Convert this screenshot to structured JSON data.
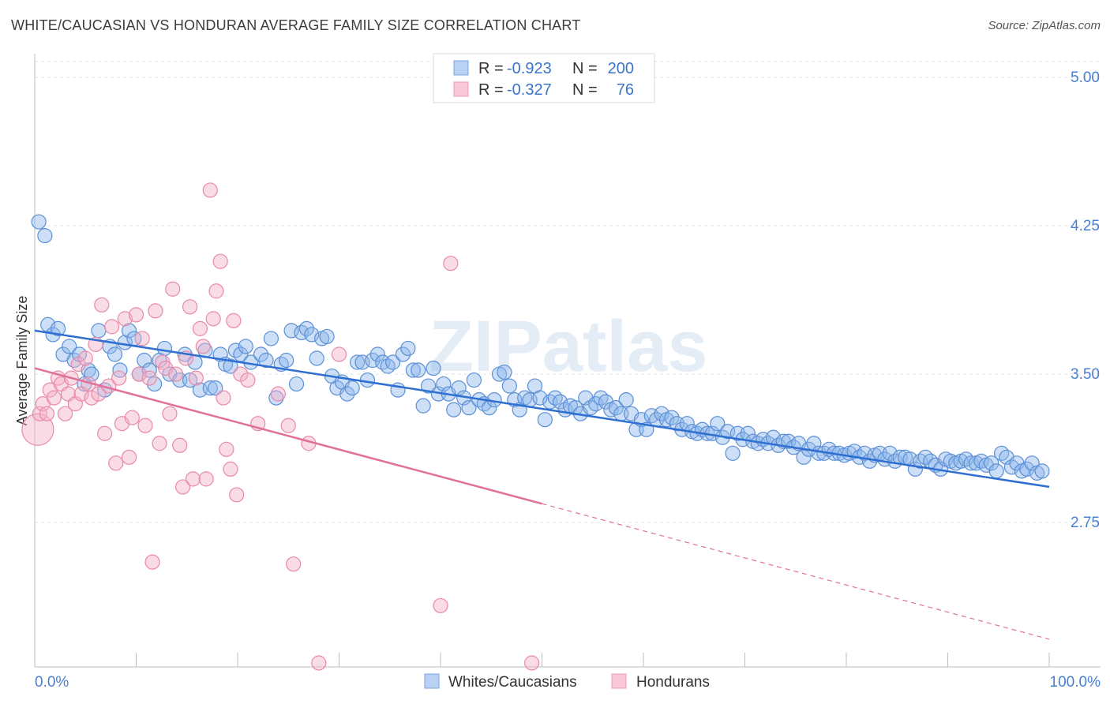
{
  "title": "WHITE/CAUCASIAN VS HONDURAN AVERAGE FAMILY SIZE CORRELATION CHART",
  "source": "Source: ZipAtlas.com",
  "watermark": "ZIPatlas",
  "chart_data": {
    "type": "scatter",
    "xlabel": "",
    "ylabel": "Average Family Size",
    "xlim": [
      0,
      100
    ],
    "ylim": [
      2.02,
      5.12
    ],
    "y_ticks": [
      "5.00",
      "4.25",
      "3.50",
      "2.75"
    ],
    "y_tick_values": [
      5.0,
      4.25,
      3.5,
      2.75
    ],
    "x_tick_labels": [
      "0.0%",
      "100.0%"
    ],
    "grid": true,
    "legend": [
      {
        "r_label": "R =",
        "r_value": "-0.923",
        "n_label": "N =",
        "n_value": "200"
      },
      {
        "r_label": "R =",
        "r_value": "-0.327",
        "n_label": "N =",
        "n_value": "76"
      }
    ],
    "series": [
      {
        "name": "Whites/Caucasians",
        "color": "#8fb8ea",
        "stroke": "#5b8fd6",
        "line_color": "#2e6fd1",
        "trend": {
          "x0": 0,
          "y0": 3.72,
          "x1": 100,
          "y1": 2.93,
          "solid_to": 100
        },
        "points": [
          [
            0.4,
            4.27
          ],
          [
            1,
            4.2
          ],
          [
            1.3,
            3.75
          ],
          [
            1.8,
            3.7
          ],
          [
            2.3,
            3.73
          ],
          [
            2.8,
            3.6
          ],
          [
            3.4,
            3.64
          ],
          [
            3.9,
            3.57
          ],
          [
            4.4,
            3.6
          ],
          [
            4.9,
            3.45
          ],
          [
            5.3,
            3.52
          ],
          [
            5.6,
            3.5
          ],
          [
            6.3,
            3.72
          ],
          [
            6.9,
            3.42
          ],
          [
            7.4,
            3.64
          ],
          [
            7.9,
            3.6
          ],
          [
            8.4,
            3.52
          ],
          [
            8.9,
            3.66
          ],
          [
            9.3,
            3.72
          ],
          [
            9.8,
            3.68
          ],
          [
            10.3,
            3.5
          ],
          [
            10.8,
            3.57
          ],
          [
            11.3,
            3.52
          ],
          [
            11.8,
            3.45
          ],
          [
            12.3,
            3.57
          ],
          [
            12.8,
            3.63
          ],
          [
            13.3,
            3.5
          ],
          [
            14.3,
            3.47
          ],
          [
            14.8,
            3.6
          ],
          [
            15.3,
            3.47
          ],
          [
            15.8,
            3.56
          ],
          [
            16.3,
            3.42
          ],
          [
            16.8,
            3.62
          ],
          [
            17.3,
            3.43
          ],
          [
            17.8,
            3.43
          ],
          [
            18.3,
            3.6
          ],
          [
            18.8,
            3.55
          ],
          [
            19.3,
            3.54
          ],
          [
            19.8,
            3.62
          ],
          [
            20.3,
            3.6
          ],
          [
            20.8,
            3.64
          ],
          [
            21.3,
            3.56
          ],
          [
            22.3,
            3.6
          ],
          [
            22.8,
            3.57
          ],
          [
            23.3,
            3.68
          ],
          [
            23.8,
            3.38
          ],
          [
            24.3,
            3.55
          ],
          [
            24.8,
            3.57
          ],
          [
            25.3,
            3.72
          ],
          [
            25.8,
            3.45
          ],
          [
            26.3,
            3.71
          ],
          [
            26.8,
            3.73
          ],
          [
            27.3,
            3.7
          ],
          [
            27.8,
            3.58
          ],
          [
            28.3,
            3.68
          ],
          [
            28.8,
            3.69
          ],
          [
            29.3,
            3.49
          ],
          [
            29.8,
            3.43
          ],
          [
            30.3,
            3.46
          ],
          [
            30.8,
            3.4
          ],
          [
            31.3,
            3.43
          ],
          [
            31.8,
            3.56
          ],
          [
            32.3,
            3.56
          ],
          [
            32.8,
            3.47
          ],
          [
            33.3,
            3.57
          ],
          [
            33.8,
            3.6
          ],
          [
            34.3,
            3.56
          ],
          [
            34.8,
            3.54
          ],
          [
            35.3,
            3.56
          ],
          [
            35.8,
            3.42
          ],
          [
            36.3,
            3.6
          ],
          [
            36.8,
            3.63
          ],
          [
            37.3,
            3.52
          ],
          [
            37.8,
            3.52
          ],
          [
            38.3,
            3.34
          ],
          [
            38.8,
            3.44
          ],
          [
            39.3,
            3.53
          ],
          [
            39.8,
            3.4
          ],
          [
            40.3,
            3.45
          ],
          [
            40.8,
            3.4
          ],
          [
            41.3,
            3.32
          ],
          [
            41.8,
            3.43
          ],
          [
            42.3,
            3.38
          ],
          [
            42.8,
            3.33
          ],
          [
            43.3,
            3.47
          ],
          [
            43.8,
            3.37
          ],
          [
            44.3,
            3.35
          ],
          [
            44.8,
            3.33
          ],
          [
            45.3,
            3.37
          ],
          [
            45.8,
            3.5
          ],
          [
            46.3,
            3.51
          ],
          [
            46.8,
            3.44
          ],
          [
            47.3,
            3.37
          ],
          [
            47.8,
            3.32
          ],
          [
            48.3,
            3.38
          ],
          [
            48.8,
            3.37
          ],
          [
            49.3,
            3.44
          ],
          [
            49.8,
            3.38
          ],
          [
            50.3,
            3.27
          ],
          [
            50.8,
            3.36
          ],
          [
            51.3,
            3.38
          ],
          [
            51.8,
            3.36
          ],
          [
            52.3,
            3.32
          ],
          [
            52.8,
            3.34
          ],
          [
            53.3,
            3.33
          ],
          [
            53.8,
            3.3
          ],
          [
            54.3,
            3.38
          ],
          [
            54.8,
            3.33
          ],
          [
            55.3,
            3.35
          ],
          [
            55.8,
            3.38
          ],
          [
            56.3,
            3.36
          ],
          [
            56.8,
            3.32
          ],
          [
            57.3,
            3.33
          ],
          [
            57.8,
            3.3
          ],
          [
            58.3,
            3.37
          ],
          [
            58.8,
            3.3
          ],
          [
            59.3,
            3.22
          ],
          [
            59.8,
            3.27
          ],
          [
            60.3,
            3.22
          ],
          [
            60.8,
            3.29
          ],
          [
            61.3,
            3.27
          ],
          [
            61.8,
            3.3
          ],
          [
            62.3,
            3.27
          ],
          [
            62.8,
            3.28
          ],
          [
            63.3,
            3.25
          ],
          [
            63.8,
            3.22
          ],
          [
            64.3,
            3.25
          ],
          [
            64.8,
            3.21
          ],
          [
            65.3,
            3.2
          ],
          [
            65.8,
            3.22
          ],
          [
            66.3,
            3.2
          ],
          [
            66.8,
            3.2
          ],
          [
            67.3,
            3.25
          ],
          [
            67.8,
            3.18
          ],
          [
            68.3,
            3.21
          ],
          [
            68.8,
            3.1
          ],
          [
            69.3,
            3.2
          ],
          [
            69.8,
            3.17
          ],
          [
            70.3,
            3.2
          ],
          [
            70.8,
            3.16
          ],
          [
            71.3,
            3.15
          ],
          [
            71.8,
            3.17
          ],
          [
            72.3,
            3.15
          ],
          [
            72.8,
            3.18
          ],
          [
            73.3,
            3.14
          ],
          [
            73.8,
            3.16
          ],
          [
            74.3,
            3.16
          ],
          [
            74.8,
            3.13
          ],
          [
            75.3,
            3.15
          ],
          [
            75.8,
            3.08
          ],
          [
            76.3,
            3.12
          ],
          [
            76.8,
            3.15
          ],
          [
            77.3,
            3.1
          ],
          [
            77.8,
            3.1
          ],
          [
            78.3,
            3.12
          ],
          [
            78.8,
            3.1
          ],
          [
            79.3,
            3.1
          ],
          [
            79.8,
            3.09
          ],
          [
            80.3,
            3.1
          ],
          [
            80.8,
            3.11
          ],
          [
            81.3,
            3.08
          ],
          [
            81.8,
            3.1
          ],
          [
            82.3,
            3.06
          ],
          [
            82.8,
            3.09
          ],
          [
            83.3,
            3.1
          ],
          [
            83.8,
            3.07
          ],
          [
            84.3,
            3.1
          ],
          [
            84.8,
            3.06
          ],
          [
            85.3,
            3.08
          ],
          [
            85.8,
            3.08
          ],
          [
            86.3,
            3.07
          ],
          [
            86.8,
            3.02
          ],
          [
            87.3,
            3.06
          ],
          [
            87.8,
            3.08
          ],
          [
            88.3,
            3.06
          ],
          [
            88.8,
            3.04
          ],
          [
            89.3,
            3.02
          ],
          [
            89.8,
            3.07
          ],
          [
            90.3,
            3.06
          ],
          [
            90.8,
            3.05
          ],
          [
            91.3,
            3.06
          ],
          [
            91.8,
            3.07
          ],
          [
            92.3,
            3.05
          ],
          [
            92.8,
            3.05
          ],
          [
            93.3,
            3.06
          ],
          [
            93.8,
            3.04
          ],
          [
            94.3,
            3.05
          ],
          [
            94.8,
            3.01
          ],
          [
            95.3,
            3.1
          ],
          [
            95.8,
            3.08
          ],
          [
            96.3,
            3.03
          ],
          [
            96.8,
            3.05
          ],
          [
            97.3,
            3.01
          ],
          [
            97.8,
            3.02
          ],
          [
            98.3,
            3.05
          ],
          [
            98.8,
            3.0
          ],
          [
            99.3,
            3.01
          ]
        ]
      },
      {
        "name": "Hondurans",
        "color": "#f5b2c8",
        "stroke": "#e889a8",
        "line_color": "#e07099",
        "trend": {
          "x0": 0,
          "y0": 3.53,
          "x1": 100,
          "y1": 2.16,
          "solid_to": 50
        },
        "points": [
          [
            0.3,
            3.22
          ],
          [
            0.5,
            3.3
          ],
          [
            0.8,
            3.35
          ],
          [
            1.2,
            3.3
          ],
          [
            1.5,
            3.42
          ],
          [
            1.9,
            3.38
          ],
          [
            2.3,
            3.48
          ],
          [
            2.6,
            3.45
          ],
          [
            3,
            3.3
          ],
          [
            3.3,
            3.4
          ],
          [
            3.6,
            3.48
          ],
          [
            4,
            3.35
          ],
          [
            4.3,
            3.55
          ],
          [
            4.6,
            3.4
          ],
          [
            5,
            3.58
          ],
          [
            5.3,
            3.45
          ],
          [
            5.6,
            3.38
          ],
          [
            6,
            3.65
          ],
          [
            6.3,
            3.4
          ],
          [
            6.6,
            3.85
          ],
          [
            6.9,
            3.2
          ],
          [
            7.3,
            3.44
          ],
          [
            7.6,
            3.74
          ],
          [
            8,
            3.05
          ],
          [
            8.3,
            3.48
          ],
          [
            8.6,
            3.25
          ],
          [
            8.9,
            3.78
          ],
          [
            9.3,
            3.08
          ],
          [
            9.6,
            3.28
          ],
          [
            10,
            3.8
          ],
          [
            10.3,
            3.5
          ],
          [
            10.6,
            3.68
          ],
          [
            10.9,
            3.24
          ],
          [
            11.3,
            3.48
          ],
          [
            11.6,
            2.55
          ],
          [
            11.9,
            3.82
          ],
          [
            12.3,
            3.15
          ],
          [
            12.6,
            3.56
          ],
          [
            12.9,
            3.53
          ],
          [
            13.3,
            3.3
          ],
          [
            13.6,
            3.93
          ],
          [
            13.9,
            3.5
          ],
          [
            14.3,
            3.14
          ],
          [
            14.6,
            2.93
          ],
          [
            14.9,
            3.58
          ],
          [
            15.3,
            3.84
          ],
          [
            15.6,
            2.97
          ],
          [
            15.9,
            3.48
          ],
          [
            16.3,
            3.73
          ],
          [
            16.6,
            3.64
          ],
          [
            16.9,
            2.97
          ],
          [
            17.3,
            4.43
          ],
          [
            17.6,
            3.78
          ],
          [
            17.9,
            3.92
          ],
          [
            18.3,
            4.07
          ],
          [
            18.6,
            3.38
          ],
          [
            18.9,
            3.12
          ],
          [
            19.3,
            3.02
          ],
          [
            19.6,
            3.77
          ],
          [
            19.9,
            2.89
          ],
          [
            20.3,
            3.5
          ],
          [
            21,
            3.47
          ],
          [
            22,
            3.25
          ],
          [
            24,
            3.4
          ],
          [
            25,
            3.24
          ],
          [
            25.5,
            2.54
          ],
          [
            27,
            3.15
          ],
          [
            28,
            2.04
          ],
          [
            30,
            3.6
          ],
          [
            40,
            2.33
          ],
          [
            41,
            4.06
          ],
          [
            49,
            2.04
          ]
        ]
      }
    ]
  }
}
